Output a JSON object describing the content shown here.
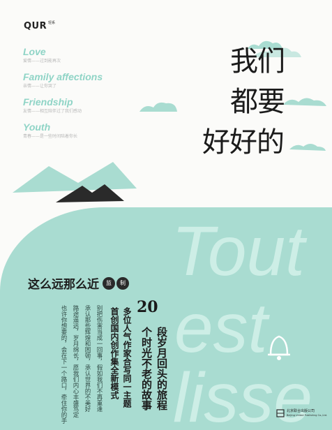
{
  "logo": {
    "brand": "QUR",
    "sub": "轻系"
  },
  "keywords": [
    {
      "en": "Love",
      "cn": "爱情——过到能再次"
    },
    {
      "en": "Family affections",
      "cn": "亲情——让你哭了"
    },
    {
      "en": "Friendship",
      "cn": "友情——相互陪伴过了我们感动"
    },
    {
      "en": "Youth",
      "cn": "青春——是一些时间陪着你长"
    }
  ],
  "title": {
    "col1": [
      "我",
      "都",
      "好"
    ],
    "col2": [
      "们",
      "要",
      "好的"
    ]
  },
  "title_lines": [
    "我们",
    "都要",
    "好好的"
  ],
  "watermark": [
    "Tout",
    "est",
    "lisse"
  ],
  "author": {
    "name": "这么远那么近",
    "role1": "监",
    "role2": "制"
  },
  "blurb": [
    "别把伤害当成一回事，假如我们不再重逢",
    "承认那些辉煌和困顿，承认世界的不美好",
    "路途遥远，岁月绵长，愿我们内心丰盛笃定",
    "也许你想要的，会在下一个路口，牵住你的手"
  ],
  "taglines": {
    "number": "20",
    "line1": "段岁月回头的旅程",
    "line2": "个时光不老的故事",
    "line3": "多位人气作家合写同一主题",
    "line4": "首创国内创作集全新模式"
  },
  "publisher": {
    "name": "北京联合出版公司",
    "en": "Beijing United Publishing Co.,Ltd."
  },
  "colors": {
    "teal": "#a9dcd1",
    "accent": "#8fd4c6",
    "dark": "#1b1b1b"
  }
}
